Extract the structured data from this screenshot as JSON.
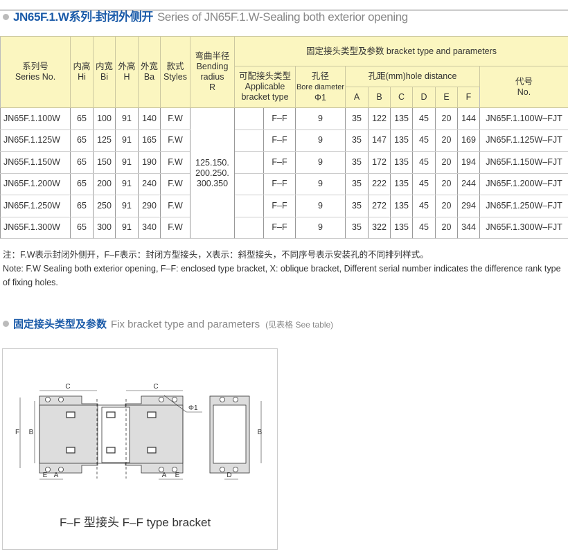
{
  "title": {
    "cn": "JN65F.1.W系列-封闭外侧开",
    "en": "Series of JN65F.1.W-Sealing both exterior opening"
  },
  "table": {
    "headers": {
      "series_cn": "系列号",
      "series_en": "Series No.",
      "hi_cn": "内高",
      "hi_en": "Hi",
      "bi_cn": "内宽",
      "bi_en": "Bi",
      "h_cn": "外高",
      "h_en": "H",
      "ba_cn": "外宽",
      "ba_en": "Ba",
      "styles_cn": "款式",
      "styles_en": "Styles",
      "radius_cn": "弯曲半径",
      "radius_en1": "Bending",
      "radius_en2": "radius",
      "radius_en3": "R",
      "bracket_group": "固定接头类型及参数 bracket type and parameters",
      "applicable_cn": "可配接头类型",
      "applicable_en1": "Applicable",
      "applicable_en2": "bracket type",
      "bore_cn": "孔径",
      "bore_en": "Bore diameter",
      "bore_sym": "Φ1",
      "hole_dist": "孔距(mm)hole distance",
      "A": "A",
      "B": "B",
      "C": "C",
      "D": "D",
      "E": "E",
      "F": "F",
      "code_cn": "代号",
      "code_en": "No."
    },
    "radius_values": [
      "125.150.",
      "200.250.",
      "300.350"
    ],
    "rows": [
      {
        "series": "JN65F.1.100W",
        "hi": "65",
        "bi": "100",
        "h": "91",
        "ba": "140",
        "style": "F.W",
        "bracket": "F–F",
        "bore": "9",
        "A": "35",
        "B": "122",
        "C": "135",
        "D": "45",
        "E": "20",
        "F": "144",
        "code": "JN65F.1.100W–FJT"
      },
      {
        "series": "JN65F.1.125W",
        "hi": "65",
        "bi": "125",
        "h": "91",
        "ba": "165",
        "style": "F.W",
        "bracket": "F–F",
        "bore": "9",
        "A": "35",
        "B": "147",
        "C": "135",
        "D": "45",
        "E": "20",
        "F": "169",
        "code": "JN65F.1.125W–FJT"
      },
      {
        "series": "JN65F.1.150W",
        "hi": "65",
        "bi": "150",
        "h": "91",
        "ba": "190",
        "style": "F.W",
        "bracket": "F–F",
        "bore": "9",
        "A": "35",
        "B": "172",
        "C": "135",
        "D": "45",
        "E": "20",
        "F": "194",
        "code": "JN65F.1.150W–FJT"
      },
      {
        "series": "JN65F.1.200W",
        "hi": "65",
        "bi": "200",
        "h": "91",
        "ba": "240",
        "style": "F.W",
        "bracket": "F–F",
        "bore": "9",
        "A": "35",
        "B": "222",
        "C": "135",
        "D": "45",
        "E": "20",
        "F": "244",
        "code": "JN65F.1.200W–FJT"
      },
      {
        "series": "JN65F.1.250W",
        "hi": "65",
        "bi": "250",
        "h": "91",
        "ba": "290",
        "style": "F.W",
        "bracket": "F–F",
        "bore": "9",
        "A": "35",
        "B": "272",
        "C": "135",
        "D": "45",
        "E": "20",
        "F": "294",
        "code": "JN65F.1.250W–FJT"
      },
      {
        "series": "JN65F.1.300W",
        "hi": "65",
        "bi": "300",
        "h": "91",
        "ba": "340",
        "style": "F.W",
        "bracket": "F–F",
        "bore": "9",
        "A": "35",
        "B": "322",
        "C": "135",
        "D": "45",
        "E": "20",
        "F": "344",
        "code": "JN65F.1.300W–FJT"
      }
    ]
  },
  "note": {
    "cn": "注：F.W表示封闭外侧开，F–F表示：封闭方型接头，X表示：斜型接头，不同序号表示安装孔的不同排列样式。",
    "en": "Note: F.W Sealing both exterior opening, F–F: enclosed type bracket, X: oblique bracket, Different serial number indicates the difference rank type of fixing holes."
  },
  "section2": {
    "cn": "固定接头类型及参数",
    "en": "Fix bracket type and parameters",
    "see": "(见表格 See table)"
  },
  "diagram": {
    "labels": {
      "C": "C",
      "F": "F",
      "B": "B",
      "E": "E",
      "A": "A",
      "D": "D",
      "phi": "Φ1"
    },
    "caption": "F–F 型接头   F–F type bracket"
  }
}
